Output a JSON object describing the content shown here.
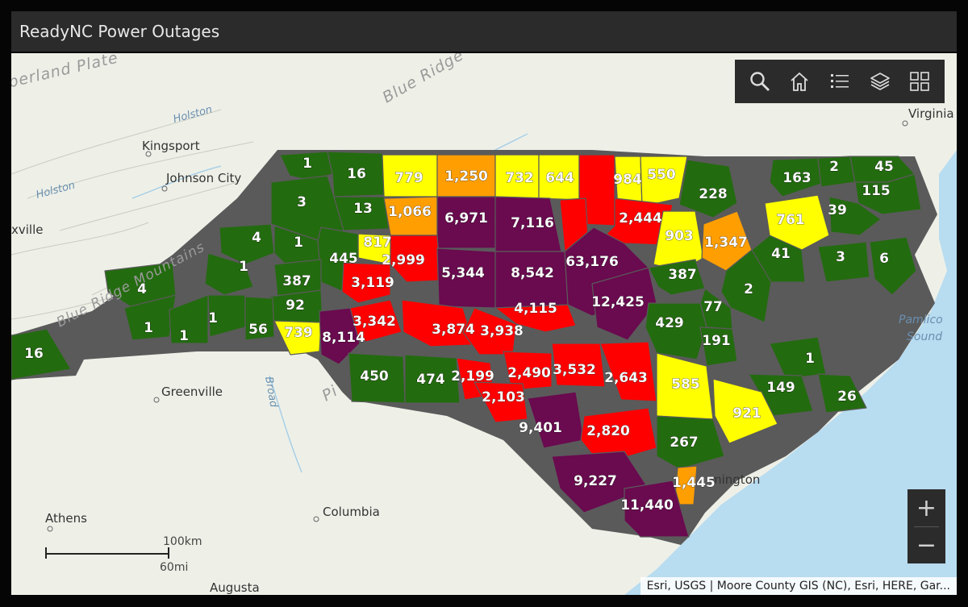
{
  "window": {
    "title": "ReadyNC Power Outages"
  },
  "colors": {
    "low": "#236b0f",
    "medium_low": "#ffff00",
    "medium": "#ff9e00",
    "high": "#ff0000",
    "very_high": "#6a0a4f",
    "ocean": "#b8dcf0",
    "land": "#eef0e8",
    "panel": "#2b2b2b"
  },
  "basemap_labels": {
    "cumberland_plateau": "berland Plate",
    "blue_ridge": "Blue Ridge",
    "holston_1": "Holston",
    "holston_2": "Holston",
    "kingsport": "Kingsport",
    "johnson_city": "Johnson City",
    "knoxville": "xville",
    "blue_ridge_mountains": "Blue Ridge Mountains",
    "greenville": "Greenville",
    "broad": "Broad",
    "piedmont": "Pi",
    "athens": "Athens",
    "columbia": "Columbia",
    "augusta": "Augusta",
    "virginia": "Virginia",
    "pamlico_sound_1": "Pamlico",
    "pamlico_sound_2": "Sound",
    "wilmington": "mington"
  },
  "toolbar": {
    "search_icon": "search-icon",
    "home_icon": "home-icon",
    "legend_icon": "list-icon",
    "layers_icon": "layers-icon",
    "basemap_icon": "basemap-gallery-icon"
  },
  "zoom": {
    "in_label": "+",
    "out_label": "−"
  },
  "scalebar": {
    "km_label": "100km",
    "mi_label": "60mi"
  },
  "attribution": "Esri, USGS | Moore County GIS (NC), Esri, HERE, Gar...",
  "counties": [
    {
      "id": "c01",
      "value": "1",
      "tier": "low"
    },
    {
      "id": "c02",
      "value": "16",
      "tier": "low"
    },
    {
      "id": "c03",
      "value": "779",
      "tier": "medium_low"
    },
    {
      "id": "c04",
      "value": "1,250",
      "tier": "medium"
    },
    {
      "id": "c05",
      "value": "732",
      "tier": "medium_low"
    },
    {
      "id": "c06",
      "value": "644",
      "tier": "medium_low"
    },
    {
      "id": "c07",
      "value": "",
      "tier": "high"
    },
    {
      "id": "c08",
      "value": "984",
      "tier": "medium_low"
    },
    {
      "id": "c09",
      "value": "550",
      "tier": "medium_low"
    },
    {
      "id": "c10",
      "value": "228",
      "tier": "low"
    },
    {
      "id": "c11",
      "value": "163",
      "tier": "low"
    },
    {
      "id": "c12",
      "value": "2",
      "tier": "low"
    },
    {
      "id": "c13",
      "value": "45",
      "tier": "low"
    },
    {
      "id": "c14",
      "value": "115",
      "tier": "low"
    },
    {
      "id": "c15",
      "value": "3",
      "tier": "low"
    },
    {
      "id": "c16",
      "value": "13",
      "tier": "low"
    },
    {
      "id": "c17",
      "value": "1,066",
      "tier": "medium"
    },
    {
      "id": "c18",
      "value": "6,971",
      "tier": "very_high"
    },
    {
      "id": "c19",
      "value": "7,116",
      "tier": "very_high"
    },
    {
      "id": "c20",
      "value": "",
      "tier": "high"
    },
    {
      "id": "c21",
      "value": "2,444",
      "tier": "high"
    },
    {
      "id": "c22",
      "value": "761",
      "tier": "medium_low"
    },
    {
      "id": "c23",
      "value": "39",
      "tier": "low"
    },
    {
      "id": "c24",
      "value": "4",
      "tier": "low"
    },
    {
      "id": "c25",
      "value": "1",
      "tier": "low"
    },
    {
      "id": "c26",
      "value": "817",
      "tier": "medium_low"
    },
    {
      "id": "c27",
      "value": "2,999",
      "tier": "high"
    },
    {
      "id": "c28",
      "value": "5,344",
      "tier": "very_high"
    },
    {
      "id": "c29",
      "value": "8,542",
      "tier": "very_high"
    },
    {
      "id": "c30",
      "value": "63,176",
      "tier": "very_high"
    },
    {
      "id": "c31",
      "value": "903",
      "tier": "medium_low"
    },
    {
      "id": "c32",
      "value": "1,347",
      "tier": "medium"
    },
    {
      "id": "c33",
      "value": "41",
      "tier": "low"
    },
    {
      "id": "c34",
      "value": "3",
      "tier": "low"
    },
    {
      "id": "c35",
      "value": "6",
      "tier": "low"
    },
    {
      "id": "c36",
      "value": "1",
      "tier": "low"
    },
    {
      "id": "c37",
      "value": "445",
      "tier": "low"
    },
    {
      "id": "c38",
      "value": "387",
      "tier": "low"
    },
    {
      "id": "c39",
      "value": "3,119",
      "tier": "high"
    },
    {
      "id": "c40",
      "value": "387",
      "tier": "low"
    },
    {
      "id": "c41",
      "value": "2",
      "tier": "low"
    },
    {
      "id": "c42",
      "value": "4",
      "tier": "low"
    },
    {
      "id": "c43",
      "value": "92",
      "tier": "low"
    },
    {
      "id": "c44",
      "value": "4,115",
      "tier": "high"
    },
    {
      "id": "c45",
      "value": "12,425",
      "tier": "very_high"
    },
    {
      "id": "c46",
      "value": "77",
      "tier": "low"
    },
    {
      "id": "c47",
      "value": "1",
      "tier": "low"
    },
    {
      "id": "c48",
      "value": "1",
      "tier": "low"
    },
    {
      "id": "c49",
      "value": "1",
      "tier": "low"
    },
    {
      "id": "c50",
      "value": "56",
      "tier": "low"
    },
    {
      "id": "c51",
      "value": "739",
      "tier": "medium_low"
    },
    {
      "id": "c52",
      "value": "3,342",
      "tier": "high"
    },
    {
      "id": "c53",
      "value": "3,874",
      "tier": "high"
    },
    {
      "id": "c54",
      "value": "3,938",
      "tier": "high"
    },
    {
      "id": "c55",
      "value": "429",
      "tier": "low"
    },
    {
      "id": "c56",
      "value": "191",
      "tier": "low"
    },
    {
      "id": "c57",
      "value": "16",
      "tier": "low"
    },
    {
      "id": "c58",
      "value": "8,114",
      "tier": "very_high"
    },
    {
      "id": "c59",
      "value": "450",
      "tier": "low"
    },
    {
      "id": "c60",
      "value": "474",
      "tier": "low"
    },
    {
      "id": "c61",
      "value": "2,199",
      "tier": "high"
    },
    {
      "id": "c62",
      "value": "2,490",
      "tier": "high"
    },
    {
      "id": "c63",
      "value": "3,532",
      "tier": "high"
    },
    {
      "id": "c64",
      "value": "2,643",
      "tier": "high"
    },
    {
      "id": "c65",
      "value": "585",
      "tier": "medium_low"
    },
    {
      "id": "c66",
      "value": "1",
      "tier": "low"
    },
    {
      "id": "c67",
      "value": "2,103",
      "tier": "high"
    },
    {
      "id": "c68",
      "value": "149",
      "tier": "low"
    },
    {
      "id": "c69",
      "value": "26",
      "tier": "low"
    },
    {
      "id": "c70",
      "value": "921",
      "tier": "medium_low"
    },
    {
      "id": "c71",
      "value": "9,401",
      "tier": "very_high"
    },
    {
      "id": "c72",
      "value": "2,820",
      "tier": "high"
    },
    {
      "id": "c73",
      "value": "267",
      "tier": "low"
    },
    {
      "id": "c74",
      "value": "9,227",
      "tier": "very_high"
    },
    {
      "id": "c75",
      "value": "1,445",
      "tier": "medium"
    },
    {
      "id": "c76",
      "value": "11,440",
      "tier": "very_high"
    }
  ]
}
